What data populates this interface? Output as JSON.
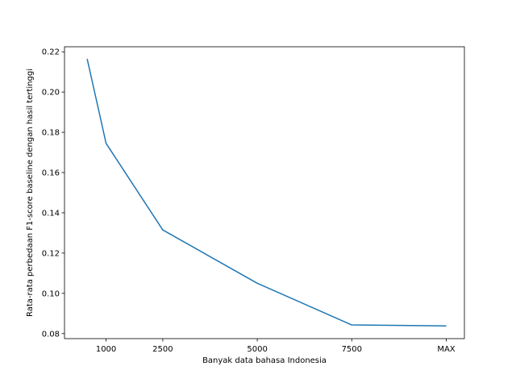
{
  "chart_data": {
    "type": "line",
    "title": "",
    "xlabel": "Banyak data bahasa Indonesia",
    "ylabel": "Rata-rata perbedaan F1-score baseline dengan hasil tertinggi",
    "x_ticks": [
      {
        "value": 1000,
        "label": "1000"
      },
      {
        "value": 2500,
        "label": "2500"
      },
      {
        "value": 5000,
        "label": "5000"
      },
      {
        "value": 7500,
        "label": "7500"
      },
      {
        "value": 10000,
        "label": "MAX"
      }
    ],
    "y_ticks": [
      0.08,
      0.1,
      0.12,
      0.14,
      0.16,
      0.18,
      0.2,
      0.22
    ],
    "xlim": [
      -100,
      10480
    ],
    "ylim": [
      0.0775,
      0.2225
    ],
    "grid": false,
    "series": [
      {
        "color": "#1f77b4",
        "points": [
          {
            "x": 500,
            "y": 0.2165
          },
          {
            "x": 1000,
            "y": 0.1745
          },
          {
            "x": 2500,
            "y": 0.1315
          },
          {
            "x": 5000,
            "y": 0.105
          },
          {
            "x": 7500,
            "y": 0.0843
          },
          {
            "x": 10000,
            "y": 0.0838
          }
        ]
      }
    ]
  }
}
